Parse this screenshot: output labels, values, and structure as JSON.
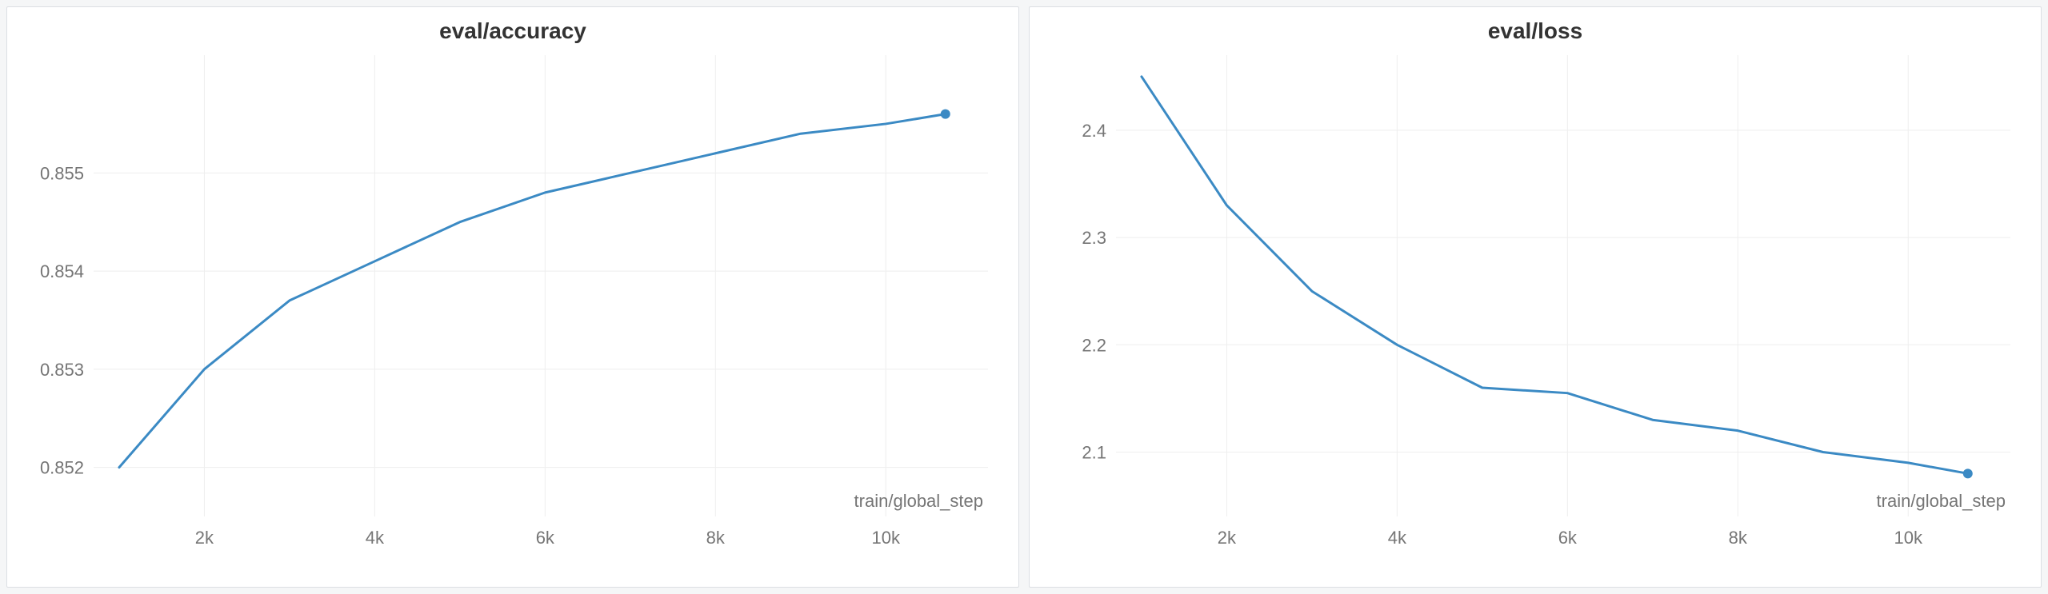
{
  "charts": [
    {
      "id": "accuracy",
      "type": "line",
      "title": "eval/accuracy",
      "title_fontsize": 28,
      "title_fontweight": 600,
      "title_color": "#333333",
      "background_color": "#ffffff",
      "panel_border_color": "#dcdfe3",
      "grid_color": "#eeeeee",
      "tick_color": "#757575",
      "tick_fontsize": 22,
      "x_axis_label": "train/global_step",
      "axis_label_fontsize": 22,
      "axis_label_color": "#757575",
      "series_color": "#3b8ac4",
      "line_width": 3,
      "end_marker_radius": 6,
      "end_marker_color": "#3b8ac4",
      "xlim": [
        700,
        11200
      ],
      "ylim": [
        0.8515,
        0.8562
      ],
      "x_ticks": [
        2000,
        4000,
        6000,
        8000,
        10000
      ],
      "x_tick_labels": [
        "2k",
        "4k",
        "6k",
        "8k",
        "10k"
      ],
      "y_ticks": [
        0.852,
        0.853,
        0.854,
        0.855
      ],
      "y_tick_labels": [
        "0.852",
        "0.853",
        "0.854",
        "0.855"
      ],
      "data": [
        {
          "x": 1000,
          "y": 0.852
        },
        {
          "x": 2000,
          "y": 0.853
        },
        {
          "x": 3000,
          "y": 0.8537
        },
        {
          "x": 4000,
          "y": 0.8541
        },
        {
          "x": 5000,
          "y": 0.8545
        },
        {
          "x": 6000,
          "y": 0.8548
        },
        {
          "x": 7000,
          "y": 0.855
        },
        {
          "x": 8000,
          "y": 0.8552
        },
        {
          "x": 9000,
          "y": 0.8554
        },
        {
          "x": 10000,
          "y": 0.8555
        },
        {
          "x": 10700,
          "y": 0.8556
        }
      ]
    },
    {
      "id": "loss",
      "type": "line",
      "title": "eval/loss",
      "title_fontsize": 28,
      "title_fontweight": 600,
      "title_color": "#333333",
      "background_color": "#ffffff",
      "panel_border_color": "#dcdfe3",
      "grid_color": "#eeeeee",
      "tick_color": "#757575",
      "tick_fontsize": 22,
      "x_axis_label": "train/global_step",
      "axis_label_fontsize": 22,
      "axis_label_color": "#757575",
      "series_color": "#3b8ac4",
      "line_width": 3,
      "end_marker_radius": 6,
      "end_marker_color": "#3b8ac4",
      "xlim": [
        700,
        11200
      ],
      "ylim": [
        2.04,
        2.47
      ],
      "x_ticks": [
        2000,
        4000,
        6000,
        8000,
        10000
      ],
      "x_tick_labels": [
        "2k",
        "4k",
        "6k",
        "8k",
        "10k"
      ],
      "y_ticks": [
        2.1,
        2.2,
        2.3,
        2.4
      ],
      "y_tick_labels": [
        "2.1",
        "2.2",
        "2.3",
        "2.4"
      ],
      "data": [
        {
          "x": 1000,
          "y": 2.45
        },
        {
          "x": 2000,
          "y": 2.33
        },
        {
          "x": 3000,
          "y": 2.25
        },
        {
          "x": 4000,
          "y": 2.2
        },
        {
          "x": 5000,
          "y": 2.16
        },
        {
          "x": 6000,
          "y": 2.155
        },
        {
          "x": 7000,
          "y": 2.13
        },
        {
          "x": 8000,
          "y": 2.12
        },
        {
          "x": 9000,
          "y": 2.1
        },
        {
          "x": 10000,
          "y": 2.09
        },
        {
          "x": 10700,
          "y": 2.08
        }
      ]
    }
  ]
}
